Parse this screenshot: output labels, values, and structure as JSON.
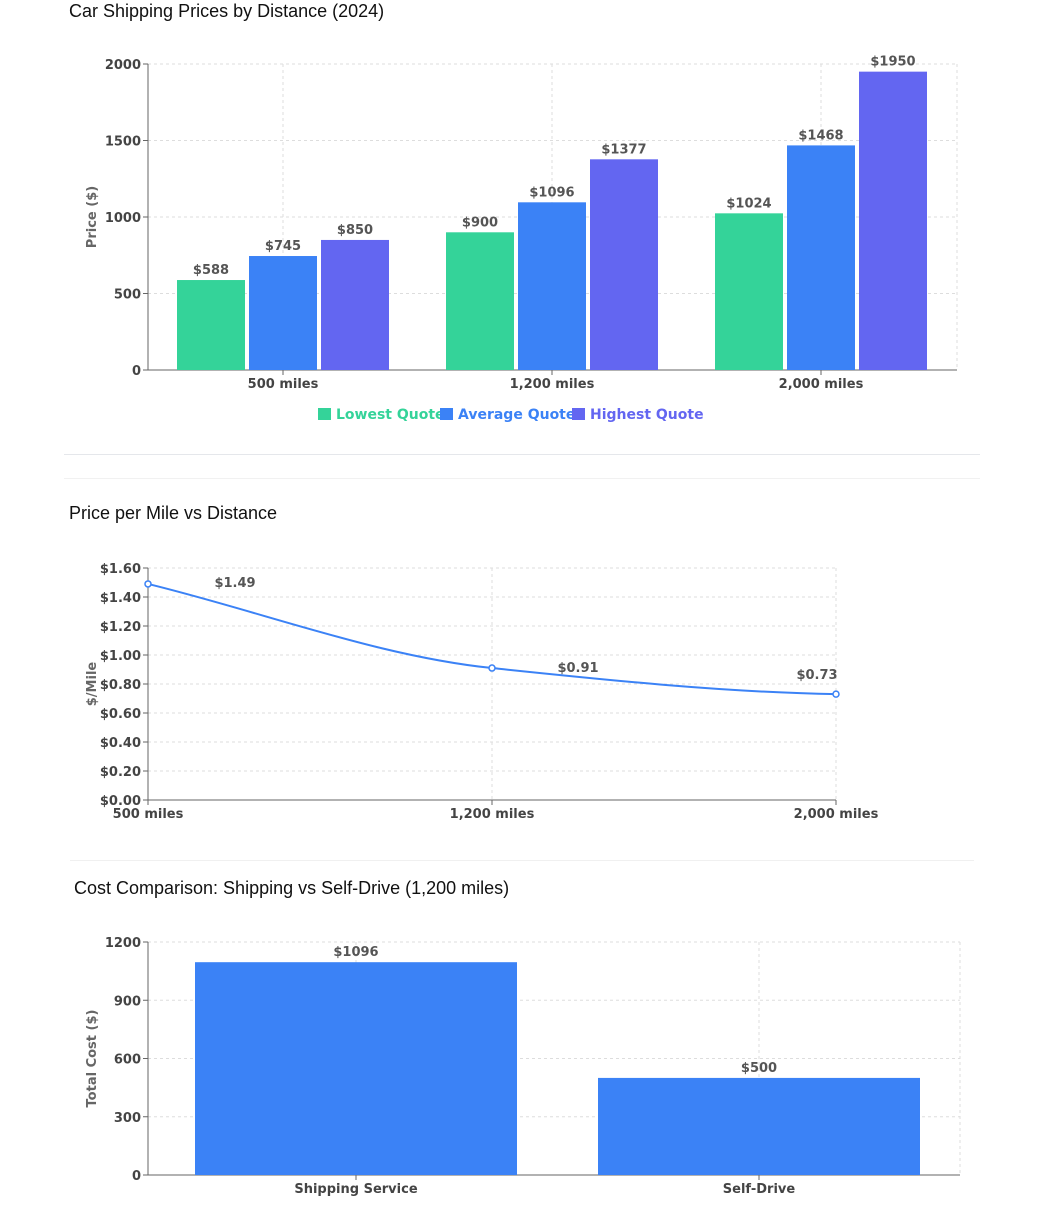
{
  "chart_data": [
    {
      "type": "bar",
      "title": "Car Shipping Prices by Distance (2024)",
      "xlabel": "",
      "ylabel": "Price ($)",
      "ylim": [
        0,
        2000
      ],
      "yticks": [
        "0",
        "500",
        "1000",
        "1500",
        "2000"
      ],
      "categories": [
        "500 miles",
        "1,200 miles",
        "2,000 miles"
      ],
      "series": [
        {
          "name": "Lowest Quote",
          "color": "#34d399",
          "values": [
            588,
            900,
            1024
          ],
          "labels": [
            "$588",
            "$900",
            "$1024"
          ]
        },
        {
          "name": "Average Quote",
          "color": "#3b82f6",
          "values": [
            745,
            1096,
            1468
          ],
          "labels": [
            "$745",
            "$1096",
            "$1468"
          ]
        },
        {
          "name": "Highest Quote",
          "color": "#6366f1",
          "values": [
            850,
            1377,
            1950
          ],
          "labels": [
            "$850",
            "$1377",
            "$1950"
          ]
        }
      ],
      "legend": "bottom-center",
      "grid": true
    },
    {
      "type": "line",
      "title": "Price per Mile vs Distance",
      "xlabel": "",
      "ylabel": "$/Mile",
      "ylim": [
        0,
        1.6
      ],
      "yticks": [
        "$0.00",
        "$0.20",
        "$0.40",
        "$0.60",
        "$0.80",
        "$1.00",
        "$1.20",
        "$1.40",
        "$1.60"
      ],
      "categories": [
        "500 miles",
        "1,200 miles",
        "2,000 miles"
      ],
      "series": [
        {
          "color": "#3b82f6",
          "values": [
            1.49,
            0.91,
            0.73
          ],
          "labels": [
            "$1.49",
            "$0.91",
            "$0.73"
          ]
        }
      ],
      "grid": true
    },
    {
      "type": "bar",
      "title": "Cost Comparison: Shipping vs Self-Drive (1,200 miles)",
      "xlabel": "",
      "ylabel": "Total Cost ($)",
      "ylim": [
        0,
        1200
      ],
      "yticks": [
        "0",
        "300",
        "600",
        "900",
        "1200"
      ],
      "categories": [
        "Shipping Service",
        "Self-Drive"
      ],
      "series": [
        {
          "color": "#3b82f6",
          "values": [
            1096,
            500
          ],
          "labels": [
            "$1096",
            "$500"
          ]
        }
      ],
      "grid": true
    }
  ]
}
